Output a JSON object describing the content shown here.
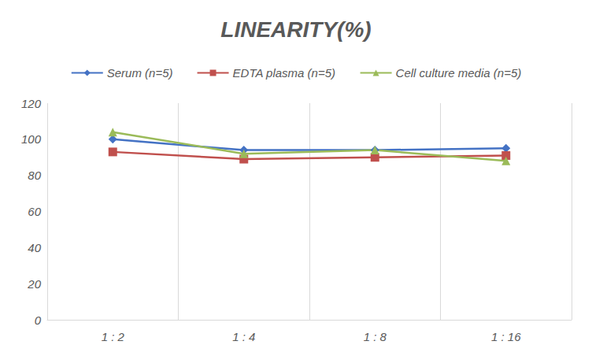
{
  "chart_data": {
    "type": "line",
    "title": "LINEARITY(%)",
    "categories": [
      "1 : 2",
      "1 : 4",
      "1 : 8",
      "1 : 16"
    ],
    "series": [
      {
        "name": "Serum (n=5)",
        "color": "#4472c4",
        "marker": "diamond",
        "values": [
          100,
          94,
          94,
          95
        ]
      },
      {
        "name": "EDTA plasma (n=5)",
        "color": "#c0504d",
        "marker": "square",
        "values": [
          93,
          89,
          90,
          91
        ]
      },
      {
        "name": "Cell culture media (n=5)",
        "color": "#9bbb59",
        "marker": "triangle",
        "values": [
          104,
          92,
          94,
          88
        ]
      }
    ],
    "ylim": [
      0,
      120
    ],
    "yticks": [
      0,
      20,
      40,
      60,
      80,
      100,
      120
    ],
    "grid": true,
    "legend": "top"
  }
}
